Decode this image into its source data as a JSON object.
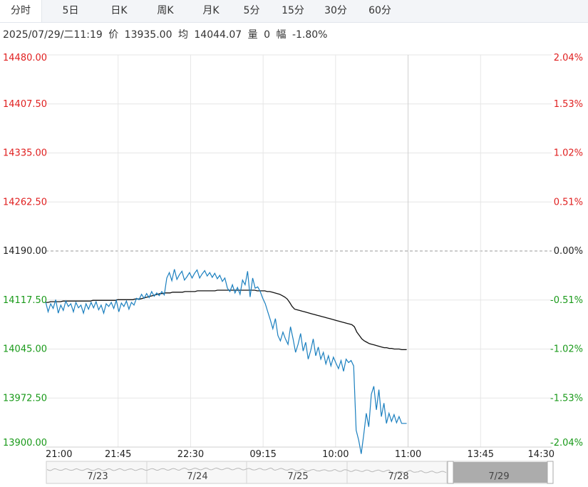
{
  "tabs": [
    {
      "label": "分时",
      "active": true
    },
    {
      "label": "5日",
      "active": false
    },
    {
      "label": "日K",
      "active": false
    },
    {
      "label": "周K",
      "active": false
    },
    {
      "label": "月K",
      "active": false
    },
    {
      "label": "5分",
      "active": false
    },
    {
      "label": "15分",
      "active": false
    },
    {
      "label": "30分",
      "active": false
    },
    {
      "label": "60分",
      "active": false
    }
  ],
  "info": {
    "datetime": "2025/07/29/二11:19",
    "price_label": "价",
    "price": "13935.00",
    "avg_label": "均",
    "avg": "14044.07",
    "volume_label": "量",
    "volume": "0",
    "change_label": "幅",
    "change": "-1.80%"
  },
  "colors": {
    "up": "#e02020",
    "down": "#1a9a1a",
    "base": "#222222",
    "price_line": "#1a7fbf",
    "avg_line": "#111111",
    "grid": "#e6e6e6"
  },
  "chart_data": {
    "type": "line",
    "title": "",
    "xlabel": "",
    "ylabel": "",
    "base_price": 14190.0,
    "ylim": [
      13900.0,
      14480.0
    ],
    "y_ticks": [
      "14480.00",
      "14407.50",
      "14335.00",
      "14262.50",
      "14190.00",
      "14117.50",
      "14045.00",
      "13972.50",
      "13900.00"
    ],
    "y_ticks_right": [
      "2.04%",
      "1.53%",
      "1.02%",
      "0.51%",
      "0.00%",
      "-0.51%",
      "-1.02%",
      "-1.53%",
      "-2.04%"
    ],
    "x_ticks": [
      "21:00",
      "21:45",
      "22:30",
      "09:15",
      "10:00",
      "11:00",
      "13:45",
      "14:30"
    ],
    "series": [
      {
        "values": [
          14115,
          14100,
          14112,
          14105,
          14118,
          14098,
          14110,
          14102,
          14116,
          14108,
          14112,
          14100,
          14114,
          14106,
          14110,
          14098,
          14112,
          14104,
          14114,
          14106,
          14115,
          14103,
          14110,
          14098,
          14112,
          14108,
          14114,
          14105,
          14117,
          14100,
          14113,
          14108,
          14116,
          14104,
          14114,
          14110,
          14120,
          14118,
          14126,
          14120,
          14127,
          14121,
          14130,
          14123,
          14128,
          14124,
          14130,
          14125,
          14150,
          14158,
          14146,
          14163,
          14148,
          14155,
          14160,
          14147,
          14152,
          14158,
          14150,
          14157,
          14162,
          14150,
          14156,
          14161,
          14153,
          14158,
          14151,
          14157,
          14149,
          14154,
          14145,
          14150,
          14135,
          14130,
          14140,
          14128,
          14136,
          14126,
          14147,
          14140,
          14160,
          14122,
          14150,
          14135,
          14137,
          14130,
          14120,
          14112,
          14100,
          14088,
          14075,
          14090,
          14065,
          14057,
          14070,
          14060,
          14052,
          14078,
          14060,
          14040,
          14052,
          14068,
          14042,
          14055,
          14030,
          14043,
          14060,
          14035,
          14048,
          14030,
          14040,
          14023,
          14035,
          14020,
          14033,
          14024,
          14016,
          14028,
          14012,
          14030,
          14025,
          14028,
          14020,
          13925,
          13910,
          13890,
          13918,
          13950,
          13930,
          13978,
          13990,
          13955,
          13985,
          13945,
          13965,
          13935,
          13950,
          13938,
          13948,
          13936,
          13945,
          13935,
          13935,
          13935
        ]
      },
      {
        "values": [
          14114,
          14114,
          14115,
          14115,
          14115,
          14115,
          14115,
          14116,
          14116,
          14116,
          14116,
          14116,
          14116,
          14116,
          14116,
          14116,
          14116,
          14116,
          14116,
          14117,
          14117,
          14117,
          14117,
          14117,
          14117,
          14117,
          14117,
          14117,
          14117,
          14118,
          14118,
          14118,
          14118,
          14118,
          14118,
          14118,
          14119,
          14119,
          14119,
          14120,
          14121,
          14122,
          14123,
          14124,
          14125,
          14126,
          14127,
          14127,
          14128,
          14128,
          14128,
          14129,
          14129,
          14129,
          14129,
          14129,
          14130,
          14130,
          14130,
          14130,
          14130,
          14131,
          14131,
          14131,
          14131,
          14131,
          14131,
          14131,
          14131,
          14132,
          14132,
          14132,
          14132,
          14132,
          14132,
          14132,
          14132,
          14132,
          14132,
          14132,
          14132,
          14132,
          14132,
          14132,
          14132,
          14131,
          14131,
          14131,
          14131,
          14130,
          14130,
          14129,
          14128,
          14127,
          14126,
          14124,
          14122,
          14119,
          14114,
          14108,
          14104,
          14103,
          14102,
          14101,
          14100,
          14099,
          14098,
          14097,
          14096,
          14095,
          14094,
          14093,
          14092,
          14091,
          14090,
          14089,
          14088,
          14087,
          14086,
          14085,
          14084,
          14083,
          14082,
          14081,
          14078,
          14070,
          14065,
          14060,
          14057,
          14055,
          14053,
          14052,
          14051,
          14050,
          14049,
          14048,
          14047,
          14047,
          14046,
          14046,
          14045,
          14045,
          14045,
          14044,
          14044,
          14044
        ]
      }
    ],
    "navigator": {
      "labels": [
        "7/23",
        "7/24",
        "7/25",
        "7/28",
        "7/29"
      ],
      "selected": "7/29"
    },
    "grid": true
  }
}
